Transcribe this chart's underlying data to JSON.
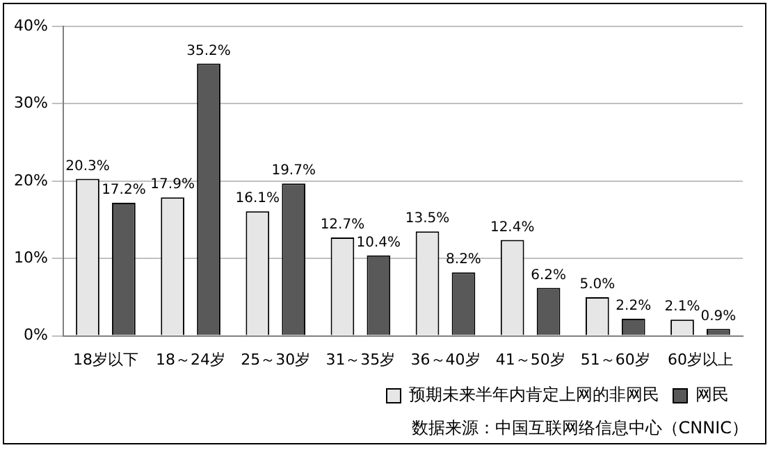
{
  "chart_data": {
    "type": "bar",
    "categories": [
      "18岁以下",
      "18～24岁",
      "25～30岁",
      "31～35岁",
      "36～40岁",
      "41～50岁",
      "51～60岁",
      "60岁以上"
    ],
    "series": [
      {
        "name": "预期未来半年内肯定上网的非网民",
        "color": "#e6e6e6",
        "values": [
          20.3,
          17.9,
          16.1,
          12.7,
          13.5,
          12.4,
          5.0,
          2.1
        ],
        "value_labels": [
          "20.3%",
          "17.9%",
          "16.1%",
          "12.7%",
          "13.5%",
          "12.4%",
          "5.0%",
          "2.1%"
        ]
      },
      {
        "name": "网民",
        "color": "#595959",
        "values": [
          17.2,
          35.2,
          19.7,
          10.4,
          8.2,
          6.2,
          2.2,
          0.9
        ],
        "value_labels": [
          "17.2%",
          "35.2%",
          "19.7%",
          "10.4%",
          "8.2%",
          "6.2%",
          "2.2%",
          "0.9%"
        ]
      }
    ],
    "ylim": [
      0,
      40
    ],
    "yticks": [
      {
        "value": 0,
        "label": "0%"
      },
      {
        "value": 10,
        "label": "10%"
      },
      {
        "value": 20,
        "label": "20%"
      },
      {
        "value": 30,
        "label": "30%"
      },
      {
        "value": 40,
        "label": "40%"
      }
    ],
    "grid": "y",
    "legend": "bottom",
    "annotations": [
      "数据来源：中国互联网络信息中心（CNNIC）"
    ]
  }
}
